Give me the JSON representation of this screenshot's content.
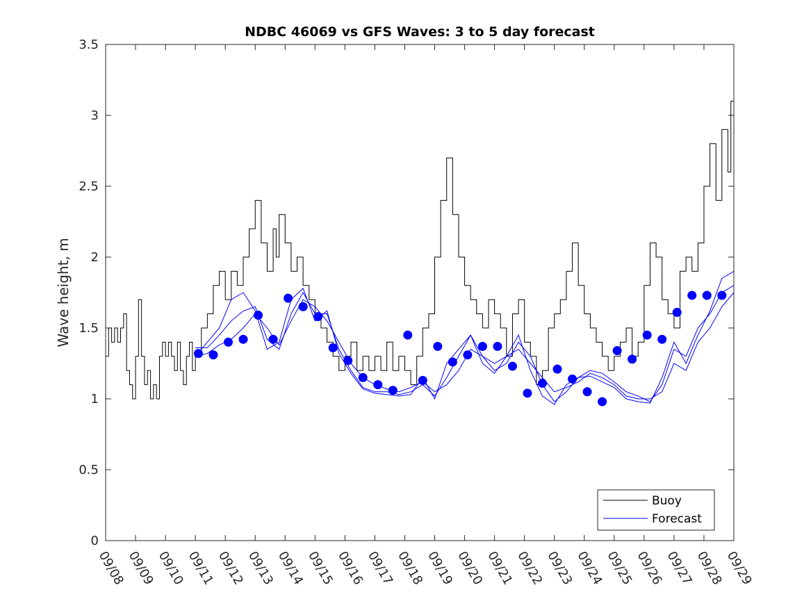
{
  "chart_data": {
    "type": "line",
    "title": "NDBC 46069 vs GFS Waves: 3 to 5 day forecast",
    "xlabel": "",
    "ylabel": "Wave height, m",
    "xlim": [
      0,
      21
    ],
    "ylim": [
      0,
      3.5
    ],
    "x_tick_labels": [
      "09/08",
      "09/09",
      "09/10",
      "09/11",
      "09/12",
      "09/13",
      "09/14",
      "09/15",
      "09/16",
      "09/17",
      "09/18",
      "09/19",
      "09/20",
      "09/21",
      "09/22",
      "09/23",
      "09/24",
      "09/25",
      "09/26",
      "09/27",
      "09/28",
      "09/29"
    ],
    "y_ticks": [
      0,
      0.5,
      1,
      1.5,
      2,
      2.5,
      3,
      3.5
    ],
    "y_tick_labels": [
      "0",
      "0.5",
      "1",
      "1.5",
      "2",
      "2.5",
      "3",
      "3.5"
    ],
    "legend": {
      "position": "bottom-right",
      "entries": [
        "Buoy",
        "Forecast"
      ]
    },
    "colors": {
      "buoy": "#000000",
      "forecast": "#0000ff",
      "markers": "#0000ff",
      "axes": "#262626"
    },
    "series": [
      {
        "name": "Buoy",
        "x": [
          0,
          0.1,
          0.2,
          0.3,
          0.4,
          0.5,
          0.6,
          0.7,
          0.8,
          0.9,
          1.0,
          1.1,
          1.2,
          1.3,
          1.4,
          1.5,
          1.6,
          1.7,
          1.8,
          1.9,
          2.0,
          2.1,
          2.2,
          2.3,
          2.4,
          2.5,
          2.6,
          2.7,
          2.8,
          2.9,
          3.0,
          3.2,
          3.4,
          3.6,
          3.8,
          4.0,
          4.2,
          4.4,
          4.6,
          4.8,
          5.0,
          5.2,
          5.4,
          5.6,
          5.7,
          5.8,
          6.0,
          6.2,
          6.4,
          6.6,
          6.8,
          7.0,
          7.2,
          7.4,
          7.6,
          7.8,
          8.0,
          8.2,
          8.4,
          8.6,
          8.8,
          9.0,
          9.2,
          9.4,
          9.6,
          9.8,
          10.0,
          10.2,
          10.4,
          10.6,
          10.8,
          11.0,
          11.2,
          11.4,
          11.6,
          11.8,
          12.0,
          12.2,
          12.4,
          12.6,
          12.8,
          13.0,
          13.2,
          13.4,
          13.6,
          13.8,
          14.0,
          14.2,
          14.4,
          14.6,
          14.8,
          15.0,
          15.2,
          15.4,
          15.6,
          15.8,
          16.0,
          16.2,
          16.4,
          16.6,
          16.8,
          17.0,
          17.2,
          17.4,
          17.6,
          17.8,
          18.0,
          18.2,
          18.4,
          18.6,
          18.8,
          19.0,
          19.2,
          19.4,
          19.6,
          19.8,
          20.0,
          20.2,
          20.4,
          20.6,
          20.8,
          20.9,
          21.0
        ],
        "values": [
          1.3,
          1.5,
          1.4,
          1.5,
          1.4,
          1.5,
          1.6,
          1.2,
          1.1,
          1.0,
          1.3,
          1.7,
          1.3,
          1.1,
          1.2,
          1.0,
          1.1,
          1.0,
          1.3,
          1.4,
          1.3,
          1.4,
          1.3,
          1.2,
          1.4,
          1.2,
          1.1,
          1.3,
          1.4,
          1.2,
          1.3,
          1.5,
          1.6,
          1.8,
          1.9,
          1.7,
          1.9,
          1.8,
          2.0,
          2.2,
          2.4,
          2.1,
          1.9,
          2.2,
          2.0,
          2.3,
          2.1,
          1.9,
          2.0,
          1.8,
          1.7,
          1.6,
          1.5,
          1.4,
          1.3,
          1.2,
          1.3,
          1.4,
          1.2,
          1.3,
          1.2,
          1.3,
          1.2,
          1.4,
          1.2,
          1.3,
          1.2,
          1.1,
          1.3,
          1.5,
          1.6,
          2.0,
          2.4,
          2.7,
          2.3,
          2.0,
          1.8,
          1.7,
          1.6,
          1.5,
          1.7,
          1.6,
          1.5,
          1.3,
          1.6,
          1.7,
          1.4,
          1.3,
          1.1,
          1.2,
          1.5,
          1.6,
          1.7,
          1.9,
          2.1,
          1.8,
          1.6,
          1.5,
          1.4,
          1.3,
          1.2,
          1.3,
          1.4,
          1.5,
          1.3,
          1.4,
          1.8,
          2.1,
          2.0,
          1.7,
          1.6,
          1.5,
          1.9,
          2.0,
          1.9,
          2.1,
          2.5,
          2.8,
          2.4,
          2.9,
          2.6,
          3.1,
          2.8
        ]
      },
      {
        "name": "Forecast",
        "x": [
          3.0,
          3.4,
          3.8,
          4.2,
          4.6,
          5.0,
          5.4,
          5.8,
          6.2,
          6.6,
          7.0,
          7.4,
          7.8,
          8.2,
          8.6,
          9.0,
          9.4,
          9.8,
          10.2,
          10.6,
          11.0,
          11.4,
          11.8,
          12.2,
          12.6,
          13.0,
          13.4,
          13.8,
          14.2,
          14.6,
          15.0,
          15.4,
          15.8,
          16.2,
          16.6,
          17.0,
          17.4,
          17.8,
          18.2,
          18.6,
          19.0,
          19.4,
          19.8,
          20.2,
          20.6,
          21.0
        ],
        "values": [
          1.3,
          1.32,
          1.38,
          1.42,
          1.5,
          1.6,
          1.5,
          1.38,
          1.55,
          1.7,
          1.65,
          1.55,
          1.4,
          1.25,
          1.15,
          1.1,
          1.07,
          1.05,
          1.08,
          1.12,
          1.05,
          1.1,
          1.2,
          1.35,
          1.3,
          1.25,
          1.3,
          1.35,
          1.25,
          1.15,
          1.05,
          1.08,
          1.12,
          1.18,
          1.15,
          1.1,
          1.02,
          1.0,
          1.0,
          1.05,
          1.25,
          1.2,
          1.4,
          1.5,
          1.65,
          1.75
        ]
      },
      {
        "name": "Forecast",
        "x": [
          3.0,
          3.4,
          3.8,
          4.2,
          4.6,
          5.0,
          5.4,
          5.8,
          6.2,
          6.6,
          7.0,
          7.4,
          7.8,
          8.2,
          8.6,
          9.0,
          9.4,
          9.8,
          10.2,
          10.6,
          11.0,
          11.4,
          11.8,
          12.2,
          12.6,
          13.0,
          13.4,
          13.8,
          14.2,
          14.6,
          15.0,
          15.4,
          15.8,
          16.2,
          16.6,
          17.0,
          17.4,
          17.8,
          18.2,
          18.6,
          19.0,
          19.4,
          19.8,
          20.2,
          20.6,
          21.0
        ],
        "values": [
          1.36,
          1.36,
          1.45,
          1.55,
          1.62,
          1.65,
          1.42,
          1.35,
          1.6,
          1.75,
          1.6,
          1.6,
          1.35,
          1.2,
          1.08,
          1.05,
          1.05,
          1.03,
          1.05,
          1.1,
          1.02,
          1.15,
          1.3,
          1.45,
          1.3,
          1.2,
          1.25,
          1.4,
          1.3,
          1.1,
          0.98,
          1.05,
          1.15,
          1.2,
          1.18,
          1.12,
          1.05,
          1.02,
          0.98,
          1.1,
          1.35,
          1.3,
          1.5,
          1.6,
          1.75,
          1.8
        ]
      },
      {
        "name": "Forecast",
        "x": [
          3.0,
          3.4,
          3.8,
          4.2,
          4.6,
          5.0,
          5.4,
          5.8,
          6.2,
          6.6,
          7.0,
          7.4,
          7.8,
          8.2,
          8.6,
          9.0,
          9.4,
          9.8,
          10.2,
          10.6,
          11.0,
          11.4,
          11.8,
          12.2,
          12.6,
          13.0,
          13.4,
          13.8,
          14.2,
          14.6,
          15.0,
          15.4,
          15.8,
          16.2,
          16.6,
          17.0,
          17.4,
          17.8,
          18.2,
          18.6,
          19.0,
          19.4,
          19.8,
          20.2,
          20.6,
          21.0
        ],
        "values": [
          1.3,
          1.4,
          1.5,
          1.7,
          1.75,
          1.62,
          1.35,
          1.4,
          1.7,
          1.78,
          1.55,
          1.62,
          1.32,
          1.18,
          1.07,
          1.04,
          1.03,
          1.02,
          1.03,
          1.15,
          1.0,
          1.25,
          1.35,
          1.45,
          1.25,
          1.18,
          1.3,
          1.45,
          1.2,
          1.02,
          0.96,
          1.1,
          1.15,
          1.16,
          1.12,
          1.08,
          1.0,
          0.98,
          0.97,
          1.15,
          1.4,
          1.25,
          1.45,
          1.62,
          1.85,
          1.9
        ]
      }
    ],
    "markers": {
      "name": "Forecast",
      "x": [
        3.1,
        3.6,
        4.1,
        4.6,
        5.1,
        5.6,
        6.1,
        6.6,
        7.1,
        7.6,
        8.1,
        8.6,
        9.1,
        9.6,
        10.1,
        10.6,
        11.1,
        11.6,
        12.1,
        12.6,
        13.1,
        13.6,
        14.1,
        14.6,
        15.1,
        15.6,
        16.1,
        16.6,
        17.1,
        17.6,
        18.1,
        18.6,
        19.1,
        19.6,
        20.1,
        20.6
      ],
      "values": [
        1.32,
        1.31,
        1.4,
        1.42,
        1.59,
        1.42,
        1.71,
        1.65,
        1.58,
        1.36,
        1.27,
        1.15,
        1.1,
        1.06,
        1.45,
        1.13,
        1.37,
        1.26,
        1.31,
        1.37,
        1.37,
        1.23,
        1.04,
        1.11,
        1.21,
        1.14,
        1.05,
        0.98,
        1.34,
        1.28,
        1.45,
        1.42,
        1.61,
        1.73,
        1.73,
        1.73
      ]
    }
  }
}
